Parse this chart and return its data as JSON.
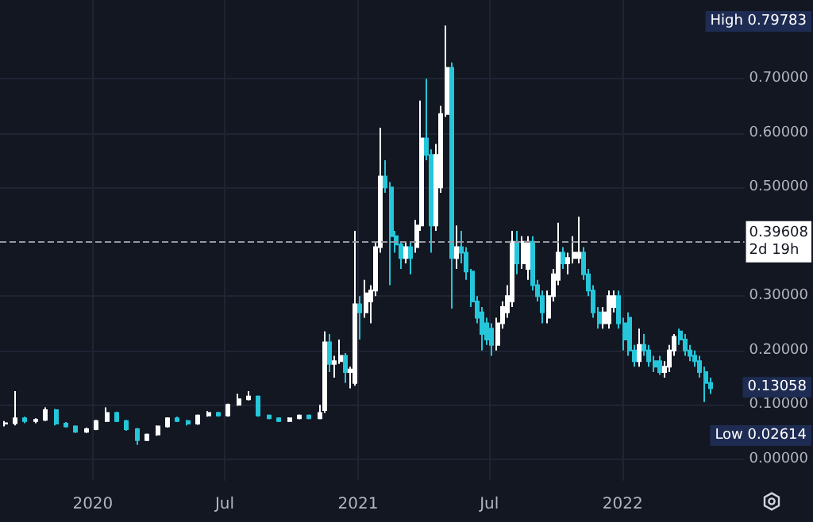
{
  "chart_data": {
    "type": "candlestick",
    "x": [
      "2019-09-02",
      "2019-09-16",
      "2019-09-30",
      "2019-10-14",
      "2019-10-28",
      "2019-11-11",
      "2019-11-25",
      "2019-12-09",
      "2019-12-23",
      "2020-01-06",
      "2020-01-20",
      "2020-02-03",
      "2020-02-17",
      "2020-03-02",
      "2020-03-16",
      "2020-03-30",
      "2020-04-13",
      "2020-04-27",
      "2020-05-11",
      "2020-05-25",
      "2020-06-08",
      "2020-06-22",
      "2020-07-06",
      "2020-07-20",
      "2020-08-03",
      "2020-08-17",
      "2020-08-31",
      "2020-09-14",
      "2020-09-28",
      "2020-10-12",
      "2020-10-26",
      "2020-11-09",
      "2020-11-16",
      "2020-11-23",
      "2020-11-30",
      "2020-12-07",
      "2020-12-14",
      "2020-12-21",
      "2020-12-28",
      "2021-01-04",
      "2021-01-11",
      "2021-01-18",
      "2021-01-25",
      "2021-02-01",
      "2021-02-08",
      "2021-02-15",
      "2021-02-22",
      "2021-03-01",
      "2021-03-08",
      "2021-03-15",
      "2021-03-22",
      "2021-03-29",
      "2021-04-05",
      "2021-04-12",
      "2021-04-19",
      "2021-04-26",
      "2021-05-03",
      "2021-05-10",
      "2021-05-17",
      "2021-05-24",
      "2021-05-31",
      "2021-06-07",
      "2021-06-14",
      "2021-06-21",
      "2021-06-28",
      "2021-07-05",
      "2021-07-12",
      "2021-07-19",
      "2021-07-26",
      "2021-08-02",
      "2021-08-09",
      "2021-08-16",
      "2021-08-23",
      "2021-08-30",
      "2021-09-06",
      "2021-09-13",
      "2021-09-20",
      "2021-09-27",
      "2021-10-04",
      "2021-10-11",
      "2021-10-18",
      "2021-10-25",
      "2021-11-01",
      "2021-11-08",
      "2021-11-15",
      "2021-11-22",
      "2021-11-29",
      "2021-12-06",
      "2021-12-13",
      "2021-12-20",
      "2021-12-27",
      "2022-01-03",
      "2022-01-10",
      "2022-01-17",
      "2022-01-24",
      "2022-01-31",
      "2022-02-07",
      "2022-02-14",
      "2022-02-21",
      "2022-02-28",
      "2022-03-07",
      "2022-03-14",
      "2022-03-21",
      "2022-03-28",
      "2022-04-04",
      "2022-04-11",
      "2022-04-18",
      "2022-04-25",
      "2022-05-02"
    ],
    "ohlc": [
      [
        0.065,
        0.07,
        0.06,
        0.066
      ],
      [
        0.066,
        0.125,
        0.062,
        0.075
      ],
      [
        0.075,
        0.078,
        0.066,
        0.07
      ],
      [
        0.07,
        0.075,
        0.066,
        0.072
      ],
      [
        0.072,
        0.095,
        0.07,
        0.09
      ],
      [
        0.09,
        0.092,
        0.062,
        0.065
      ],
      [
        0.065,
        0.068,
        0.058,
        0.06
      ],
      [
        0.06,
        0.062,
        0.048,
        0.05
      ],
      [
        0.05,
        0.058,
        0.048,
        0.055
      ],
      [
        0.055,
        0.072,
        0.053,
        0.07
      ],
      [
        0.07,
        0.095,
        0.068,
        0.085
      ],
      [
        0.085,
        0.087,
        0.068,
        0.07
      ],
      [
        0.07,
        0.072,
        0.052,
        0.055
      ],
      [
        0.055,
        0.057,
        0.026,
        0.035
      ],
      [
        0.035,
        0.047,
        0.033,
        0.045
      ],
      [
        0.045,
        0.062,
        0.043,
        0.06
      ],
      [
        0.06,
        0.077,
        0.058,
        0.075
      ],
      [
        0.075,
        0.078,
        0.068,
        0.07
      ],
      [
        0.07,
        0.072,
        0.062,
        0.065
      ],
      [
        0.065,
        0.082,
        0.063,
        0.08
      ],
      [
        0.08,
        0.088,
        0.078,
        0.085
      ],
      [
        0.085,
        0.087,
        0.078,
        0.08
      ],
      [
        0.08,
        0.102,
        0.078,
        0.1
      ],
      [
        0.1,
        0.12,
        0.098,
        0.11
      ],
      [
        0.11,
        0.125,
        0.108,
        0.115
      ],
      [
        0.115,
        0.117,
        0.078,
        0.08
      ],
      [
        0.08,
        0.082,
        0.073,
        0.075
      ],
      [
        0.075,
        0.077,
        0.068,
        0.07
      ],
      [
        0.07,
        0.077,
        0.068,
        0.075
      ],
      [
        0.075,
        0.082,
        0.073,
        0.08
      ],
      [
        0.08,
        0.082,
        0.073,
        0.075
      ],
      [
        0.075,
        0.1,
        0.073,
        0.085
      ],
      [
        0.09,
        0.235,
        0.085,
        0.215
      ],
      [
        0.215,
        0.23,
        0.16,
        0.175
      ],
      [
        0.175,
        0.19,
        0.15,
        0.18
      ],
      [
        0.18,
        0.22,
        0.175,
        0.19
      ],
      [
        0.19,
        0.195,
        0.14,
        0.16
      ],
      [
        0.16,
        0.17,
        0.13,
        0.165
      ],
      [
        0.14,
        0.42,
        0.135,
        0.285
      ],
      [
        0.285,
        0.3,
        0.22,
        0.27
      ],
      [
        0.27,
        0.33,
        0.26,
        0.305
      ],
      [
        0.29,
        0.32,
        0.25,
        0.31
      ],
      [
        0.31,
        0.4,
        0.3,
        0.39
      ],
      [
        0.39,
        0.61,
        0.38,
        0.52
      ],
      [
        0.52,
        0.55,
        0.49,
        0.5
      ],
      [
        0.5,
        0.51,
        0.32,
        0.41
      ],
      [
        0.41,
        0.42,
        0.38,
        0.395
      ],
      [
        0.395,
        0.4,
        0.35,
        0.37
      ],
      [
        0.37,
        0.4,
        0.36,
        0.39
      ],
      [
        0.39,
        0.4,
        0.34,
        0.37
      ],
      [
        0.39,
        0.44,
        0.38,
        0.43
      ],
      [
        0.43,
        0.66,
        0.42,
        0.59
      ],
      [
        0.59,
        0.7,
        0.55,
        0.56
      ],
      [
        0.56,
        0.57,
        0.38,
        0.43
      ],
      [
        0.43,
        0.58,
        0.42,
        0.56
      ],
      [
        0.5,
        0.65,
        0.49,
        0.635
      ],
      [
        0.635,
        0.798,
        0.63,
        0.72
      ],
      [
        0.72,
        0.73,
        0.277,
        0.37
      ],
      [
        0.37,
        0.43,
        0.35,
        0.39
      ],
      [
        0.39,
        0.42,
        0.36,
        0.38
      ],
      [
        0.38,
        0.39,
        0.33,
        0.345
      ],
      [
        0.345,
        0.35,
        0.28,
        0.29
      ],
      [
        0.29,
        0.3,
        0.25,
        0.26
      ],
      [
        0.27,
        0.28,
        0.2,
        0.23
      ],
      [
        0.25,
        0.26,
        0.21,
        0.22
      ],
      [
        0.24,
        0.25,
        0.19,
        0.21
      ],
      [
        0.21,
        0.26,
        0.2,
        0.25
      ],
      [
        0.25,
        0.29,
        0.24,
        0.28
      ],
      [
        0.27,
        0.32,
        0.26,
        0.3
      ],
      [
        0.29,
        0.42,
        0.28,
        0.4
      ],
      [
        0.4,
        0.42,
        0.34,
        0.36
      ],
      [
        0.36,
        0.41,
        0.35,
        0.4
      ],
      [
        0.35,
        0.41,
        0.33,
        0.4
      ],
      [
        0.4,
        0.41,
        0.31,
        0.32
      ],
      [
        0.32,
        0.33,
        0.29,
        0.3
      ],
      [
        0.3,
        0.31,
        0.25,
        0.27
      ],
      [
        0.26,
        0.31,
        0.25,
        0.3
      ],
      [
        0.3,
        0.35,
        0.29,
        0.34
      ],
      [
        0.33,
        0.435,
        0.32,
        0.38
      ],
      [
        0.38,
        0.39,
        0.35,
        0.36
      ],
      [
        0.36,
        0.38,
        0.34,
        0.37
      ],
      [
        0.37,
        0.41,
        0.36,
        0.38
      ],
      [
        0.37,
        0.446,
        0.36,
        0.38
      ],
      [
        0.38,
        0.39,
        0.33,
        0.34
      ],
      [
        0.34,
        0.35,
        0.3,
        0.31
      ],
      [
        0.31,
        0.32,
        0.26,
        0.27
      ],
      [
        0.27,
        0.28,
        0.24,
        0.25
      ],
      [
        0.25,
        0.28,
        0.24,
        0.27
      ],
      [
        0.25,
        0.31,
        0.24,
        0.3
      ],
      [
        0.28,
        0.31,
        0.27,
        0.3
      ],
      [
        0.3,
        0.31,
        0.24,
        0.25
      ],
      [
        0.25,
        0.26,
        0.2,
        0.22
      ],
      [
        0.26,
        0.27,
        0.19,
        0.2
      ],
      [
        0.2,
        0.21,
        0.17,
        0.18
      ],
      [
        0.18,
        0.24,
        0.17,
        0.21
      ],
      [
        0.21,
        0.23,
        0.19,
        0.2
      ],
      [
        0.2,
        0.21,
        0.17,
        0.18
      ],
      [
        0.18,
        0.19,
        0.16,
        0.17
      ],
      [
        0.18,
        0.19,
        0.155,
        0.16
      ],
      [
        0.16,
        0.18,
        0.15,
        0.17
      ],
      [
        0.17,
        0.21,
        0.16,
        0.2
      ],
      [
        0.2,
        0.23,
        0.19,
        0.225
      ],
      [
        0.235,
        0.24,
        0.21,
        0.22
      ],
      [
        0.22,
        0.23,
        0.19,
        0.2
      ],
      [
        0.2,
        0.21,
        0.18,
        0.19
      ],
      [
        0.19,
        0.2,
        0.17,
        0.18
      ],
      [
        0.18,
        0.19,
        0.15,
        0.16
      ],
      [
        0.16,
        0.17,
        0.105,
        0.14
      ],
      [
        0.14,
        0.15,
        0.12,
        0.13058
      ]
    ],
    "colors": [
      "#ffffff",
      "#ffffff",
      "#26c6da",
      "#ffffff",
      "#ffffff",
      "#26c6da",
      "#26c6da",
      "#26c6da",
      "#ffffff",
      "#ffffff",
      "#ffffff",
      "#26c6da",
      "#26c6da",
      "#26c6da",
      "#ffffff",
      "#ffffff",
      "#ffffff",
      "#26c6da",
      "#26c6da",
      "#ffffff",
      "#ffffff",
      "#26c6da",
      "#ffffff",
      "#ffffff",
      "#ffffff",
      "#26c6da",
      "#26c6da",
      "#26c6da",
      "#ffffff",
      "#ffffff",
      "#26c6da",
      "#ffffff",
      "#ffffff",
      "#26c6da",
      "#ffffff",
      "#ffffff",
      "#26c6da",
      "#ffffff",
      "#ffffff",
      "#26c6da",
      "#ffffff",
      "#ffffff",
      "#ffffff",
      "#ffffff",
      "#26c6da",
      "#26c6da",
      "#26c6da",
      "#26c6da",
      "#ffffff",
      "#26c6da",
      "#ffffff",
      "#ffffff",
      "#26c6da",
      "#26c6da",
      "#ffffff",
      "#ffffff",
      "#ffffff",
      "#26c6da",
      "#ffffff",
      "#26c6da",
      "#26c6da",
      "#26c6da",
      "#26c6da",
      "#26c6da",
      "#26c6da",
      "#26c6da",
      "#ffffff",
      "#ffffff",
      "#ffffff",
      "#ffffff",
      "#26c6da",
      "#ffffff",
      "#ffffff",
      "#26c6da",
      "#26c6da",
      "#26c6da",
      "#ffffff",
      "#ffffff",
      "#ffffff",
      "#26c6da",
      "#ffffff",
      "#ffffff",
      "#ffffff",
      "#26c6da",
      "#26c6da",
      "#26c6da",
      "#26c6da",
      "#ffffff",
      "#ffffff",
      "#ffffff",
      "#26c6da",
      "#26c6da",
      "#26c6da",
      "#26c6da",
      "#ffffff",
      "#26c6da",
      "#26c6da",
      "#26c6da",
      "#26c6da",
      "#ffffff",
      "#ffffff",
      "#ffffff",
      "#26c6da",
      "#26c6da",
      "#26c6da",
      "#26c6da",
      "#26c6da",
      "#26c6da",
      "#26c6da"
    ],
    "xlim": [
      "2019-08-26",
      "2022-06-18"
    ],
    "xticks": [
      {
        "value": "2020",
        "label": "2020"
      },
      {
        "value": "2020-07",
        "label": "Jul"
      },
      {
        "value": "2021",
        "label": "2021"
      },
      {
        "value": "2021-07",
        "label": "Jul"
      },
      {
        "value": "2022",
        "label": "2022"
      }
    ],
    "ylim": [
      -0.04,
      0.845
    ],
    "yticks": [
      {
        "value": 0,
        "label": "0.00000"
      },
      {
        "value": 0.1,
        "label": "0.10000"
      },
      {
        "value": 0.2,
        "label": "0.20000"
      },
      {
        "value": 0.3,
        "label": "0.30000"
      },
      {
        "value": 0.5,
        "label": "0.50000"
      },
      {
        "value": 0.6,
        "label": "0.60000"
      },
      {
        "value": 0.7,
        "label": "0.70000"
      }
    ],
    "grid": true,
    "ref_lines": [
      {
        "axis": "y",
        "value": 0.39608,
        "label": "0.39608\n2d 19h",
        "line_style": "dashed",
        "color": "#9598a1"
      }
    ],
    "annotations": [
      "High 0.79783",
      "Low 0.02614",
      {
        "text": "0.13058",
        "y": 0.13058
      }
    ]
  }
}
